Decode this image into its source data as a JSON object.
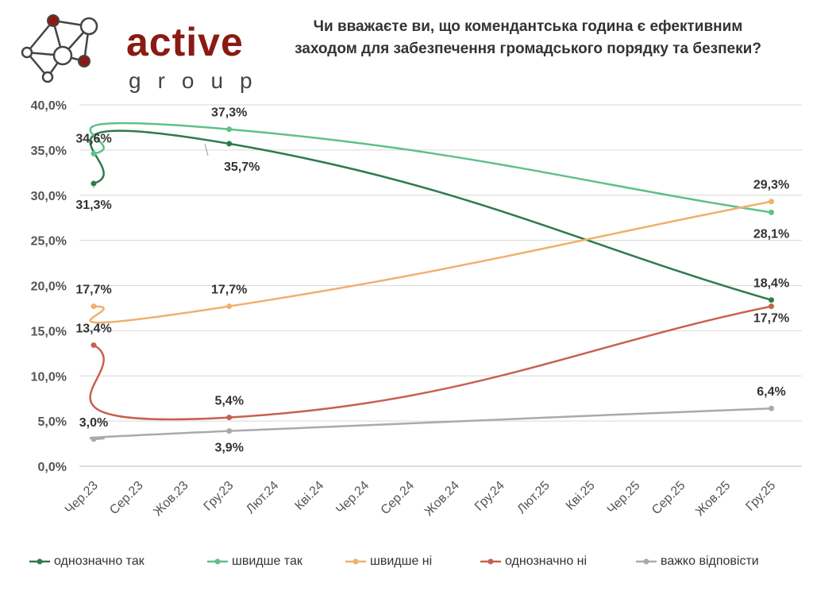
{
  "logo": {
    "word": "active",
    "sub": "group"
  },
  "chart_data": {
    "type": "line",
    "title_lines": [
      "Чи вважаєте ви, що комендантська година є ефективним",
      "заходом для забезпечення громадського порядку та безпеки?"
    ],
    "xlabel": "",
    "ylabel": "",
    "x_ticks": [
      "Чер.23",
      "Сер.23",
      "Жов.23",
      "Гру.23",
      "Лют.24",
      "Кві.24",
      "Чер.24",
      "Сер.24",
      "Жов.24",
      "Гру.24",
      "Лют.25",
      "Кві.25",
      "Чер.25",
      "Сер.25",
      "Жов.25",
      "Гру.25"
    ],
    "x_dates": [
      "2023-06",
      "2023-12",
      "2025-12"
    ],
    "y_ticks": [
      "0,0%",
      "5,0%",
      "10,0%",
      "15,0%",
      "20,0%",
      "25,0%",
      "30,0%",
      "35,0%",
      "40,0%"
    ],
    "ylim": [
      0,
      40
    ],
    "grid": true,
    "legend_position": "bottom",
    "series": [
      {
        "name": "однозначно так",
        "color": "#2f7a4c",
        "values": [
          31.3,
          35.7,
          18.4
        ],
        "labels": [
          "31,3%",
          "35,7%",
          "18,4%"
        ]
      },
      {
        "name": "швидше так",
        "color": "#5fc08a",
        "values": [
          34.6,
          37.3,
          28.1
        ],
        "labels": [
          "34,6%",
          "37,3%",
          "28,1%"
        ]
      },
      {
        "name": "швидше ні",
        "color": "#f0b06e",
        "values": [
          17.7,
          17.7,
          29.3
        ],
        "labels": [
          "17,7%",
          "17,7%",
          "29,3%"
        ]
      },
      {
        "name": "однозначно ні",
        "color": "#c8604f",
        "values": [
          13.4,
          5.4,
          17.7
        ],
        "labels": [
          "13,4%",
          "5,4%",
          "17,7%"
        ]
      },
      {
        "name": "важко відповісти",
        "color": "#aaaaaa",
        "values": [
          3.0,
          3.9,
          6.4
        ],
        "labels": [
          "3,0%",
          "3,9%",
          "6,4%"
        ]
      }
    ]
  }
}
